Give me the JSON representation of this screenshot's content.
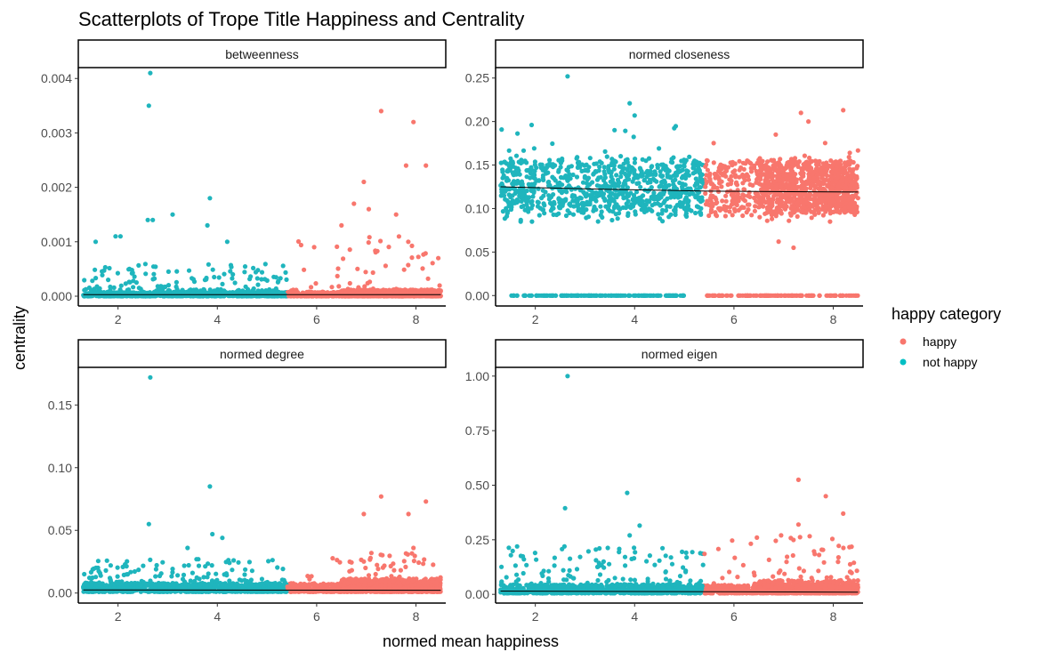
{
  "chart_data": {
    "type": "scatter",
    "title": "Scatterplots of Trope Title Happiness and Centrality",
    "xlabel": "normed mean happiness",
    "ylabel": "centrality",
    "legend": {
      "title": "happy category",
      "placement": "right",
      "entries": [
        {
          "label": "happy",
          "color": "#F8766D"
        },
        {
          "label": "not happy",
          "color": "#00BFC4"
        }
      ]
    },
    "colors": {
      "happy": "#F8766D",
      "not_happy": "#1FB5BD",
      "trend": "#000000"
    },
    "grid": false,
    "shared_x": {
      "xlim": [
        1.2,
        8.6
      ],
      "ticks": [
        2,
        4,
        6,
        8
      ],
      "tick_labels": [
        "2",
        "4",
        "6",
        "8"
      ]
    },
    "happy_threshold": 5.4,
    "facets": [
      {
        "strip": "betweenness",
        "ylim": [
          -0.00018,
          0.0042
        ],
        "yticks": [
          0,
          0.001,
          0.002,
          0.003,
          0.004
        ],
        "ytick_labels": [
          "0.000",
          "0.001",
          "0.002",
          "0.003",
          "0.004"
        ],
        "trend": [
          [
            1.3,
            3e-05
          ],
          [
            8.5,
            3e-05
          ]
        ],
        "band": {
          "base": 0,
          "spread": 8e-05,
          "jitter": 0
        },
        "zero_row": false,
        "scatter": {
          "lo": 0.0002,
          "hi": 0.0006,
          "hi_happy": 0.0011,
          "n": 220
        },
        "outliers": [
          {
            "x": 2.65,
            "y": 0.0041,
            "group": "not happy"
          },
          {
            "x": 2.62,
            "y": 0.0035,
            "group": "not happy"
          },
          {
            "x": 3.85,
            "y": 0.0018,
            "group": "not happy"
          },
          {
            "x": 3.1,
            "y": 0.0015,
            "group": "not happy"
          },
          {
            "x": 2.6,
            "y": 0.0014,
            "group": "not happy"
          },
          {
            "x": 2.7,
            "y": 0.0014,
            "group": "not happy"
          },
          {
            "x": 1.95,
            "y": 0.0011,
            "group": "not happy"
          },
          {
            "x": 2.05,
            "y": 0.0011,
            "group": "not happy"
          },
          {
            "x": 1.55,
            "y": 0.001,
            "group": "not happy"
          },
          {
            "x": 3.8,
            "y": 0.0013,
            "group": "not happy"
          },
          {
            "x": 4.2,
            "y": 0.001,
            "group": "not happy"
          },
          {
            "x": 7.3,
            "y": 0.0034,
            "group": "happy"
          },
          {
            "x": 7.95,
            "y": 0.0032,
            "group": "happy"
          },
          {
            "x": 7.8,
            "y": 0.0024,
            "group": "happy"
          },
          {
            "x": 8.2,
            "y": 0.0024,
            "group": "happy"
          },
          {
            "x": 6.95,
            "y": 0.0021,
            "group": "happy"
          },
          {
            "x": 6.75,
            "y": 0.0017,
            "group": "happy"
          },
          {
            "x": 7.05,
            "y": 0.0016,
            "group": "happy"
          },
          {
            "x": 7.6,
            "y": 0.0015,
            "group": "happy"
          },
          {
            "x": 6.5,
            "y": 0.0013,
            "group": "happy"
          },
          {
            "x": 8.45,
            "y": 0.0007,
            "group": "happy"
          },
          {
            "x": 5.95,
            "y": 0.0009,
            "group": "happy"
          }
        ]
      },
      {
        "strip": "normed closeness",
        "ylim": [
          -0.012,
          0.262
        ],
        "yticks": [
          0,
          0.05,
          0.1,
          0.15,
          0.2,
          0.25
        ],
        "ytick_labels": [
          "0.00",
          "0.05",
          "0.10",
          "0.15",
          "0.20",
          "0.25"
        ],
        "trend": [
          [
            1.3,
            0.125
          ],
          [
            3.5,
            0.122
          ],
          [
            5.5,
            0.12
          ],
          [
            8.5,
            0.119
          ]
        ],
        "band": {
          "base": 0.125,
          "spread": 0.03,
          "jitter": 0.012
        },
        "zero_row": true,
        "scatter": {
          "lo": 0.17,
          "hi": 0.2,
          "hi_happy": 0.2,
          "n": 80
        },
        "outliers": [
          {
            "x": 2.65,
            "y": 0.252,
            "group": "not happy"
          },
          {
            "x": 3.9,
            "y": 0.221,
            "group": "not happy"
          },
          {
            "x": 4.0,
            "y": 0.207,
            "group": "not happy"
          },
          {
            "x": 7.35,
            "y": 0.21,
            "group": "happy"
          },
          {
            "x": 8.2,
            "y": 0.213,
            "group": "happy"
          },
          {
            "x": 7.5,
            "y": 0.2,
            "group": "happy"
          },
          {
            "x": 7.2,
            "y": 0.055,
            "group": "happy"
          },
          {
            "x": 6.9,
            "y": 0.062,
            "group": "happy"
          }
        ]
      },
      {
        "strip": "normed degree",
        "ylim": [
          -0.008,
          0.18
        ],
        "yticks": [
          0,
          0.05,
          0.1,
          0.15
        ],
        "ytick_labels": [
          "0.00",
          "0.05",
          "0.10",
          "0.15"
        ],
        "trend": [
          [
            1.3,
            0.0025
          ],
          [
            8.5,
            0.0022
          ]
        ],
        "band": {
          "base": 0.001,
          "spread": 0.007,
          "jitter": 0
        },
        "zero_row": false,
        "scatter": {
          "lo": 0.012,
          "hi": 0.027,
          "hi_happy": 0.032,
          "n": 260
        },
        "outliers": [
          {
            "x": 2.65,
            "y": 0.172,
            "group": "not happy"
          },
          {
            "x": 3.85,
            "y": 0.085,
            "group": "not happy"
          },
          {
            "x": 2.62,
            "y": 0.055,
            "group": "not happy"
          },
          {
            "x": 3.9,
            "y": 0.047,
            "group": "not happy"
          },
          {
            "x": 4.1,
            "y": 0.044,
            "group": "not happy"
          },
          {
            "x": 3.4,
            "y": 0.036,
            "group": "not happy"
          },
          {
            "x": 7.3,
            "y": 0.077,
            "group": "happy"
          },
          {
            "x": 8.2,
            "y": 0.073,
            "group": "happy"
          },
          {
            "x": 6.95,
            "y": 0.063,
            "group": "happy"
          },
          {
            "x": 7.85,
            "y": 0.063,
            "group": "happy"
          },
          {
            "x": 7.95,
            "y": 0.036,
            "group": "happy"
          }
        ]
      },
      {
        "strip": "normed eigen",
        "ylim": [
          -0.04,
          1.04
        ],
        "yticks": [
          0,
          0.25,
          0.5,
          0.75,
          1
        ],
        "ytick_labels": [
          "0.00",
          "0.25",
          "0.50",
          "0.75",
          "1.00"
        ],
        "trend": [
          [
            1.3,
            0.015
          ],
          [
            8.5,
            0.01
          ]
        ],
        "band": {
          "base": 0.005,
          "spread": 0.04,
          "jitter": 0
        },
        "zero_row": false,
        "scatter": {
          "lo": 0.06,
          "hi": 0.22,
          "hi_happy": 0.27,
          "n": 260
        },
        "outliers": [
          {
            "x": 2.65,
            "y": 1.0,
            "group": "not happy"
          },
          {
            "x": 3.85,
            "y": 0.465,
            "group": "not happy"
          },
          {
            "x": 2.6,
            "y": 0.395,
            "group": "not happy"
          },
          {
            "x": 4.1,
            "y": 0.315,
            "group": "not happy"
          },
          {
            "x": 3.9,
            "y": 0.27,
            "group": "not happy"
          },
          {
            "x": 7.3,
            "y": 0.525,
            "group": "happy"
          },
          {
            "x": 7.85,
            "y": 0.45,
            "group": "happy"
          },
          {
            "x": 8.2,
            "y": 0.37,
            "group": "happy"
          },
          {
            "x": 7.3,
            "y": 0.32,
            "group": "happy"
          },
          {
            "x": 6.95,
            "y": 0.27,
            "group": "happy"
          }
        ]
      }
    ]
  }
}
